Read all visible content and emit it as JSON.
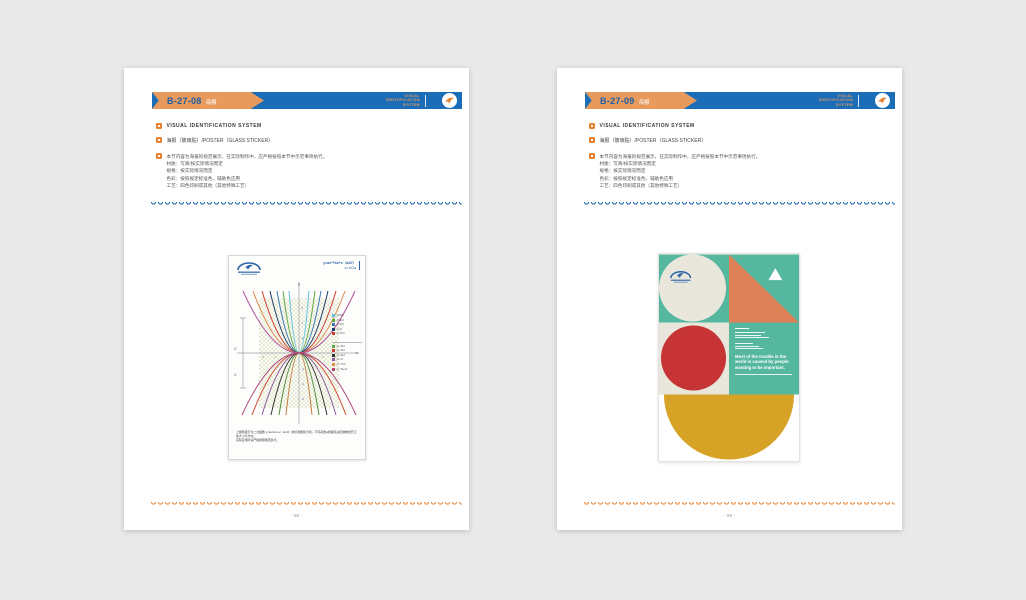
{
  "colors": {
    "canvas_bg": "#e9e9e9",
    "page_bg": "#ffffff",
    "header_blue": "#1a6db6",
    "badge_orange": "#e8995c",
    "code_blue": "#1a5fa9",
    "accent_orange": "#e8822f",
    "scallop_blue": "#1560ab",
    "poster_teal": "#56b79f",
    "poster_orange": "#df8158",
    "poster_red": "#c63436",
    "poster_yellow": "#d7a326",
    "poster_cream": "#e9e7dc",
    "logo_blue": "#2c63a8"
  },
  "pages": [
    {
      "code": "B-27-08",
      "code_label": "海报",
      "vis_lines": [
        "VISUAL",
        "IDENTIFICATION",
        "SYSTEM"
      ],
      "item_title": "VISUAL IDENTIFICATION SYSTEM",
      "item_subtitle": "海报（玻璃贴）/POSTER（GLASS STICKER）",
      "paragraph": "本节内容为海报的规范展示，在实际制作中，应严格按照本节中示范事项执行。",
      "specs": [
        "材质：写真/按实际情况而定",
        "规格：按实际情况而定",
        "色彩：按照规定标准色、辅助色应用",
        "工艺：四色印刷或其他（其他特殊工艺）"
      ],
      "footer": "- 88 -"
    },
    {
      "code": "B-27-09",
      "code_label": "海报",
      "vis_lines": [
        "VISUAL",
        "IDENTIFICATION",
        "SYSTEM"
      ],
      "item_title": "VISUAL IDENTIFICATION SYSTEM",
      "item_subtitle": "海报（玻璃贴）/POSTER（GLASS STICKER）",
      "paragraph": "本节内容为海报的规范展示，在实际制作中，应严格按照本节中示范事项执行。",
      "specs": [
        "材质：写真/按实际情况而定",
        "规格：按实际情况而定",
        "色彩：按照规定标准色、辅助色应用",
        "工艺：四色印刷或其他（其他特殊工艺）"
      ],
      "footer": "- 89 -"
    }
  ],
  "math_poster": {
    "formula_line1": "y=ax²+bx+c（a≠0）",
    "formula_line2": "x=-b/2a",
    "axis_label_x": "X",
    "legend_up": [
      {
        "color": "#5fc3e1",
        "label": "y=5x²"
      },
      {
        "color": "#61a744",
        "label": "y=3x²"
      },
      {
        "color": "#3a76b5",
        "label": "y=2x²"
      },
      {
        "color": "#1f3a6e",
        "label": "y=x²"
      },
      {
        "color": "#ce3a2f",
        "label": "y=½x²"
      }
    ],
    "legend_down": [
      {
        "color": "#61a744",
        "label": "y=-5x²"
      },
      {
        "color": "#ce3a2f",
        "label": "y=-3x²"
      },
      {
        "color": "#333333",
        "label": "y=-2x²"
      },
      {
        "color": "#8e58a2",
        "label": "y=-x²"
      },
      {
        "color": "#df8a50",
        "label": "y=-½x²"
      },
      {
        "color": "#b0457c",
        "label": "y=-⅒x²"
      }
    ],
    "caption_line1": "上图所展示为二次函数 y=ax²+bx+c（a≠0）的标准图象示例，不同系数a的取值决定抛物线开口的大小与方向，",
    "caption_line2": "实际应用时请严格按照规范执行。"
  },
  "geo_poster": {
    "quote": "Most of the trouble in the world is caused by people wanting to be important."
  }
}
